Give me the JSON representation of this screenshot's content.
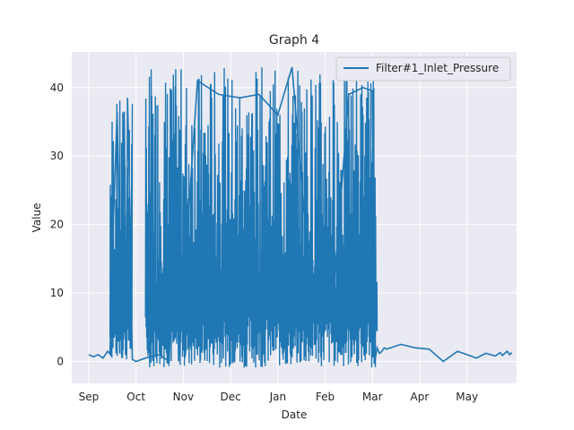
{
  "chart_data": {
    "type": "line",
    "title": "Graph 4",
    "xlabel": "Date",
    "ylabel": "Value",
    "x_ticks": [
      "Sep",
      "Oct",
      "Nov",
      "Dec",
      "Jan",
      "Feb",
      "Mar",
      "Apr",
      "May"
    ],
    "y_ticks": [
      0,
      10,
      20,
      30,
      40
    ],
    "xlim": [
      -0.36,
      9.05
    ],
    "ylim": [
      -3.2,
      45.2
    ],
    "grid": true,
    "legend_position": "top-right",
    "series": [
      {
        "name": "Filter#1_Inlet_Pressure",
        "color": "#1f77b4",
        "x": [
          0.0,
          0.1,
          0.2,
          0.3,
          0.4,
          0.45,
          0.5,
          0.6,
          0.7,
          0.75,
          0.8,
          0.82,
          0.88,
          0.92,
          1.0,
          1.2,
          1.5,
          1.7,
          1.85,
          1.9,
          2.3,
          2.75,
          3.2,
          3.6,
          4.0,
          4.3,
          4.55,
          4.8,
          5.0,
          5.2,
          5.5,
          5.8,
          6.0,
          6.05,
          6.1,
          6.15,
          6.2,
          6.25,
          6.3,
          6.6,
          6.9,
          7.2,
          7.5,
          7.8,
          8.0,
          8.2,
          8.4,
          8.5,
          8.6,
          8.7,
          8.75,
          8.8,
          8.85,
          8.9,
          8.95
        ],
        "y": [
          1.0,
          0.7,
          1.0,
          0.5,
          1.5,
          1.1,
          16.0,
          36.5,
          0.5,
          36.5,
          1.0,
          38.5,
          19.0,
          0.3,
          0.0,
          0.5,
          1.0,
          0.0,
          30.0,
          0.0,
          41.0,
          39.0,
          38.5,
          39.0,
          36.0,
          43.0,
          22.0,
          10.0,
          16.0,
          12.0,
          39.0,
          40.0,
          39.5,
          0.0,
          2.0,
          1.2,
          1.5,
          2.0,
          1.8,
          2.5,
          2.0,
          1.8,
          0.0,
          1.5,
          1.0,
          0.5,
          1.2,
          1.0,
          0.8,
          1.3,
          0.9,
          1.2,
          1.5,
          1.0,
          1.3
        ]
      }
    ],
    "dense_bands": [
      {
        "x_start": 0.45,
        "x_end": 0.92,
        "y_low": 0.0,
        "y_high": 38.5
      },
      {
        "x_start": 1.2,
        "x_end": 6.1,
        "y_low": -0.9,
        "y_high": 43.0
      }
    ]
  }
}
